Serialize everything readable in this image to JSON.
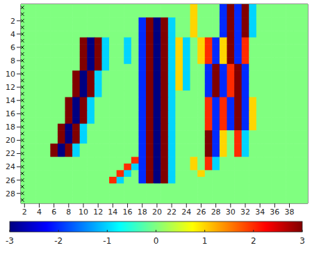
{
  "chart_data": {
    "type": "heatmap",
    "x": [
      2,
      3,
      4,
      5,
      6,
      7,
      8,
      9,
      10,
      11,
      12,
      13,
      14,
      15,
      16,
      17,
      18,
      19,
      20,
      21,
      22,
      23,
      24,
      25,
      26,
      27,
      28,
      29,
      30,
      31,
      32,
      33,
      34,
      35,
      36,
      37,
      38,
      39,
      40
    ],
    "y": [
      0,
      1,
      2,
      3,
      4,
      5,
      6,
      7,
      8,
      9,
      10,
      11,
      12,
      13,
      14,
      15,
      16,
      17,
      18,
      19,
      20,
      21,
      22,
      23,
      24,
      25,
      26,
      27,
      28,
      29
    ],
    "cells": [
      [
        0,
        0,
        0,
        0,
        0,
        0,
        0,
        0,
        0,
        0,
        0,
        0,
        0,
        0,
        0,
        0,
        0,
        0,
        0,
        0,
        0,
        0,
        0,
        1,
        0,
        0,
        0,
        -2,
        3,
        -2,
        3,
        -1,
        0,
        0,
        0,
        0,
        0,
        0,
        0
      ],
      [
        0,
        0,
        0,
        0,
        0,
        0,
        0,
        0,
        0,
        0,
        0,
        0,
        0,
        0,
        0,
        0,
        0,
        0,
        0,
        0,
        0,
        0,
        0,
        1,
        0,
        0,
        0,
        -2,
        3,
        -2,
        3,
        -1,
        0,
        0,
        0,
        0,
        0,
        0,
        0
      ],
      [
        0,
        0,
        0,
        0,
        0,
        0,
        0,
        0,
        0,
        0,
        0,
        0,
        0,
        0,
        0,
        0,
        -2,
        3,
        -3,
        3,
        -1,
        0,
        0,
        1,
        0,
        0,
        0,
        -2,
        3,
        -2,
        3,
        -1,
        0,
        0,
        0,
        0,
        0,
        0,
        0
      ],
      [
        0,
        0,
        0,
        0,
        0,
        0,
        0,
        0,
        0,
        0,
        0,
        0,
        0,
        0,
        0,
        0,
        -2,
        3,
        -3,
        3,
        -1,
        0,
        0,
        1,
        0,
        0,
        0,
        -2,
        3,
        -2,
        3,
        -1,
        0,
        0,
        0,
        0,
        0,
        0,
        0
      ],
      [
        0,
        0,
        0,
        0,
        0,
        0,
        0,
        0,
        0,
        0,
        0,
        0,
        0,
        0,
        0,
        0,
        -2,
        3,
        -3,
        3,
        -1,
        0,
        0,
        1,
        0,
        0,
        0,
        -2,
        3,
        -2,
        3,
        -1,
        0,
        0,
        0,
        0,
        0,
        0,
        0
      ],
      [
        0,
        0,
        0,
        0,
        0,
        0,
        0,
        0,
        3,
        -3,
        3,
        -1,
        0,
        0,
        -1,
        0,
        -2,
        3,
        -3,
        3,
        -1,
        1,
        -1,
        0,
        1,
        2,
        -2,
        1,
        3,
        -2,
        2,
        0,
        0,
        0,
        0,
        0,
        0,
        0,
        0
      ],
      [
        0,
        0,
        0,
        0,
        0,
        0,
        0,
        0,
        3,
        -3,
        3,
        -1,
        0,
        0,
        -1,
        0,
        -2,
        3,
        -3,
        3,
        -1,
        1,
        -1,
        0,
        1,
        2,
        -2,
        1,
        3,
        -2,
        2,
        0,
        0,
        0,
        0,
        0,
        0,
        0,
        0
      ],
      [
        0,
        0,
        0,
        0,
        0,
        0,
        0,
        0,
        3,
        -3,
        3,
        -1,
        0,
        0,
        -1,
        0,
        -2,
        3,
        -3,
        3,
        -1,
        1,
        -1,
        0,
        1,
        2,
        -2,
        1,
        3,
        -2,
        2,
        0,
        0,
        0,
        0,
        0,
        0,
        0,
        0
      ],
      [
        0,
        0,
        0,
        0,
        0,
        0,
        0,
        0,
        3,
        -3,
        3,
        -1,
        0,
        0,
        -1,
        0,
        -2,
        3,
        -3,
        3,
        -1,
        1,
        -1,
        0,
        1,
        2,
        -2,
        1,
        3,
        -2,
        2,
        0,
        0,
        0,
        0,
        0,
        0,
        0,
        0
      ],
      [
        0,
        0,
        0,
        0,
        0,
        0,
        0,
        0,
        3,
        -3,
        3,
        -1,
        0,
        0,
        0,
        0,
        -2,
        3,
        -3,
        3,
        -1,
        1,
        -1,
        0,
        0,
        -2,
        3,
        -2,
        2,
        3,
        -2,
        0,
        0,
        0,
        0,
        0,
        0,
        0,
        0
      ],
      [
        0,
        0,
        0,
        0,
        0,
        0,
        0,
        3,
        -3,
        3,
        -1,
        0,
        0,
        0,
        0,
        0,
        -2,
        3,
        -3,
        3,
        -1,
        1,
        -1,
        0,
        0,
        -2,
        3,
        -2,
        2,
        3,
        -2,
        0,
        0,
        0,
        0,
        0,
        0,
        0,
        0
      ],
      [
        0,
        0,
        0,
        0,
        0,
        0,
        0,
        3,
        -3,
        3,
        -1,
        0,
        0,
        0,
        0,
        0,
        -2,
        3,
        -3,
        3,
        -1,
        1,
        -1,
        0,
        0,
        -2,
        3,
        -2,
        2,
        3,
        -2,
        0,
        0,
        0,
        0,
        0,
        0,
        0,
        0
      ],
      [
        0,
        0,
        0,
        0,
        0,
        0,
        0,
        3,
        -3,
        3,
        -1,
        0,
        0,
        0,
        0,
        0,
        -2,
        3,
        -3,
        3,
        -1,
        1,
        -1,
        0,
        0,
        -2,
        3,
        -2,
        2,
        3,
        -2,
        0,
        0,
        0,
        0,
        0,
        0,
        0,
        0
      ],
      [
        0,
        0,
        0,
        0,
        0,
        0,
        0,
        3,
        -3,
        3,
        -1,
        0,
        0,
        0,
        0,
        0,
        -2,
        3,
        -3,
        3,
        -1,
        0,
        0,
        0,
        0,
        -2,
        3,
        -2,
        2,
        3,
        -2,
        0,
        0,
        0,
        0,
        0,
        0,
        0,
        0
      ],
      [
        0,
        0,
        0,
        0,
        0,
        0,
        3,
        -3,
        3,
        -1,
        0,
        0,
        0,
        0,
        0,
        0,
        -2,
        3,
        -3,
        3,
        -1,
        0,
        0,
        0,
        0,
        2,
        -2,
        2,
        -2,
        3,
        -2,
        1,
        0,
        0,
        0,
        0,
        0,
        0,
        0
      ],
      [
        0,
        0,
        0,
        0,
        0,
        0,
        3,
        -3,
        3,
        -1,
        0,
        0,
        0,
        0,
        0,
        0,
        -2,
        3,
        -3,
        3,
        -1,
        0,
        0,
        0,
        0,
        2,
        -2,
        2,
        -2,
        3,
        -2,
        1,
        0,
        0,
        0,
        0,
        0,
        0,
        0
      ],
      [
        0,
        0,
        0,
        0,
        0,
        0,
        3,
        -3,
        3,
        -1,
        0,
        0,
        0,
        0,
        0,
        0,
        -2,
        3,
        -3,
        3,
        -1,
        0,
        0,
        0,
        0,
        2,
        -2,
        2,
        -2,
        3,
        -2,
        1,
        0,
        0,
        0,
        0,
        0,
        0,
        0
      ],
      [
        0,
        0,
        0,
        0,
        0,
        0,
        3,
        -3,
        3,
        -1,
        0,
        0,
        0,
        0,
        0,
        0,
        -2,
        3,
        -3,
        3,
        -1,
        0,
        0,
        0,
        0,
        2,
        -2,
        2,
        -2,
        3,
        -2,
        1,
        0,
        0,
        0,
        0,
        0,
        0,
        0
      ],
      [
        0,
        0,
        0,
        0,
        0,
        3,
        -3,
        3,
        -1,
        0,
        0,
        0,
        0,
        0,
        0,
        0,
        -2,
        3,
        -3,
        3,
        -1,
        0,
        0,
        0,
        0,
        2,
        -2,
        2,
        -2,
        3,
        -2,
        1,
        0,
        0,
        0,
        0,
        0,
        0,
        0
      ],
      [
        0,
        0,
        0,
        0,
        0,
        3,
        -3,
        3,
        -1,
        0,
        0,
        0,
        0,
        0,
        0,
        0,
        -2,
        3,
        -3,
        3,
        -1,
        0,
        0,
        0,
        0,
        3,
        -2,
        1,
        0,
        2,
        -1,
        0,
        0,
        0,
        0,
        0,
        0,
        0,
        0
      ],
      [
        0,
        0,
        0,
        0,
        0,
        3,
        -3,
        3,
        -1,
        0,
        0,
        0,
        0,
        0,
        0,
        0,
        -2,
        3,
        -3,
        3,
        -1,
        0,
        0,
        0,
        0,
        3,
        -2,
        1,
        0,
        2,
        -1,
        0,
        0,
        0,
        0,
        0,
        0,
        0,
        0
      ],
      [
        0,
        0,
        0,
        0,
        3,
        -3,
        3,
        -1,
        0,
        0,
        0,
        0,
        0,
        0,
        0,
        0,
        -2,
        3,
        -3,
        3,
        -1,
        0,
        0,
        0,
        0,
        3,
        -2,
        1,
        0,
        2,
        -1,
        0,
        0,
        0,
        0,
        0,
        0,
        0,
        0
      ],
      [
        0,
        0,
        0,
        0,
        3,
        -3,
        3,
        -1,
        0,
        0,
        0,
        0,
        0,
        0,
        0,
        0,
        -2,
        3,
        -3,
        3,
        -1,
        0,
        0,
        0,
        0,
        3,
        -2,
        1,
        0,
        2,
        -1,
        0,
        0,
        0,
        0,
        0,
        0,
        0,
        0
      ],
      [
        0,
        0,
        0,
        0,
        0,
        0,
        0,
        0,
        0,
        0,
        0,
        0,
        0,
        0,
        0,
        2,
        -2,
        3,
        -3,
        3,
        -1,
        0,
        0,
        1,
        0,
        2,
        -1,
        0,
        0,
        0,
        0,
        0,
        0,
        0,
        0,
        0,
        0,
        0,
        0
      ],
      [
        0,
        0,
        0,
        0,
        0,
        0,
        0,
        0,
        0,
        0,
        0,
        0,
        0,
        0,
        2,
        -1,
        -2,
        3,
        -3,
        3,
        -1,
        0,
        0,
        1,
        0,
        2,
        -1,
        0,
        0,
        0,
        0,
        0,
        0,
        0,
        0,
        0,
        0,
        0,
        0
      ],
      [
        0,
        0,
        0,
        0,
        0,
        0,
        0,
        0,
        0,
        0,
        0,
        0,
        0,
        2,
        -1,
        0,
        -2,
        3,
        -3,
        3,
        -1,
        0,
        0,
        0,
        1,
        0,
        0,
        0,
        0,
        0,
        0,
        0,
        0,
        0,
        0,
        0,
        0,
        0,
        0
      ],
      [
        0,
        0,
        0,
        0,
        0,
        0,
        0,
        0,
        0,
        0,
        0,
        0,
        2,
        -1,
        0,
        0,
        -2,
        3,
        -3,
        3,
        -1,
        0,
        0,
        0,
        0,
        0,
        0,
        0,
        0,
        0,
        0,
        0,
        0,
        0,
        0,
        0,
        0,
        0,
        0
      ],
      [
        0,
        0,
        0,
        0,
        0,
        0,
        0,
        0,
        0,
        0,
        0,
        0,
        0,
        0,
        0,
        0,
        0,
        0,
        0,
        0,
        0,
        0,
        0,
        0,
        0,
        0,
        0,
        0,
        0,
        0,
        0,
        0,
        0,
        0,
        0,
        0,
        0,
        0,
        0
      ],
      [
        0,
        0,
        0,
        0,
        0,
        0,
        0,
        0,
        0,
        0,
        0,
        0,
        0,
        0,
        0,
        0,
        0,
        0,
        0,
        0,
        0,
        0,
        0,
        0,
        0,
        0,
        0,
        0,
        0,
        0,
        0,
        0,
        0,
        0,
        0,
        0,
        0,
        0,
        0
      ],
      [
        0,
        0,
        0,
        0,
        0,
        0,
        0,
        0,
        0,
        0,
        0,
        0,
        0,
        0,
        0,
        0,
        0,
        0,
        0,
        0,
        0,
        0,
        0,
        0,
        0,
        0,
        0,
        0,
        0,
        0,
        0,
        0,
        0,
        0,
        0,
        0,
        0,
        0,
        0
      ]
    ],
    "xlim": [
      1.5,
      40.5
    ],
    "xticks": [
      2,
      4,
      6,
      8,
      10,
      12,
      14,
      16,
      18,
      20,
      22,
      24,
      26,
      28,
      30,
      32,
      34,
      36,
      38
    ],
    "ylim": [
      -0.5,
      29.5
    ],
    "yticks": [
      2,
      4,
      6,
      8,
      10,
      12,
      14,
      16,
      18,
      20,
      22,
      24,
      26,
      28
    ],
    "grid": true,
    "colorbar": {
      "range": [
        -3,
        3
      ],
      "ticks": [
        -3,
        -2,
        -1,
        0,
        1,
        2,
        3
      ]
    },
    "stations": {
      "marker": "x",
      "color": "#000000",
      "x": [
        1.7,
        1.7,
        1.7,
        1.7,
        1.7,
        1.7,
        1.7,
        1.7,
        1.7,
        1.7,
        1.7,
        1.7,
        1.7,
        1.7,
        1.7,
        1.7,
        1.7,
        1.7,
        1.7,
        1.7,
        1.7,
        1.7,
        1.7,
        1.7,
        1.7,
        1.7,
        1.7,
        1.7,
        1.7,
        1.7
      ],
      "y": [
        0,
        1,
        2,
        3,
        4,
        5,
        6,
        7,
        8,
        9,
        10,
        11,
        12,
        13,
        14,
        15,
        16,
        17,
        18,
        19,
        20,
        21,
        22,
        23,
        24,
        25,
        26,
        27,
        28,
        29
      ]
    }
  }
}
